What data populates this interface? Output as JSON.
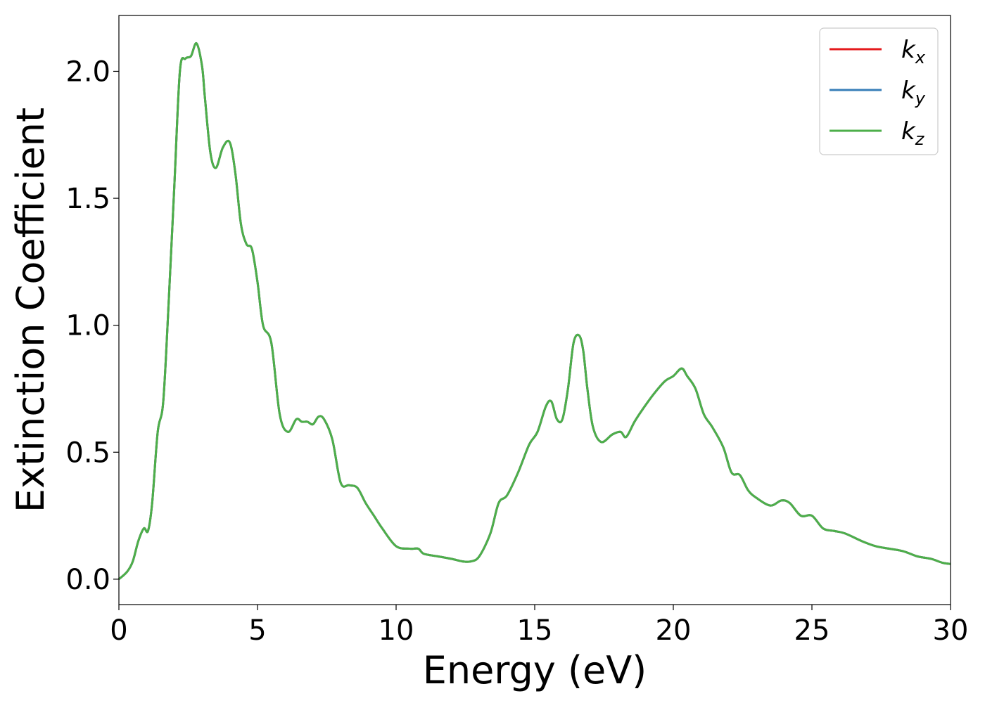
{
  "chart_data": {
    "type": "line",
    "xlabel": "Energy (eV)",
    "ylabel": "Extinction Coefficient",
    "xlim": [
      0,
      30
    ],
    "ylim": [
      -0.1,
      2.22
    ],
    "xticks": [
      0,
      5,
      10,
      15,
      20,
      25,
      30
    ],
    "xtick_labels": [
      "0",
      "5",
      "10",
      "15",
      "20",
      "25",
      "30"
    ],
    "yticks": [
      0.0,
      0.5,
      1.0,
      1.5,
      2.0
    ],
    "ytick_labels": [
      "0.0",
      "0.5",
      "1.0",
      "1.5",
      "2.0"
    ],
    "grid": false,
    "legend_position": "top-right",
    "x": [
      0,
      0.3,
      0.5,
      0.7,
      0.9,
      1.05,
      1.2,
      1.4,
      1.6,
      1.8,
      2.0,
      2.2,
      2.4,
      2.6,
      2.8,
      3.0,
      3.1,
      3.3,
      3.5,
      3.75,
      4.0,
      4.2,
      4.4,
      4.6,
      4.8,
      5.0,
      5.2,
      5.5,
      5.8,
      6.1,
      6.4,
      6.6,
      6.8,
      7.0,
      7.2,
      7.4,
      7.7,
      8.0,
      8.3,
      8.6,
      8.9,
      9.2,
      9.5,
      10.0,
      10.5,
      10.8,
      11.0,
      11.5,
      12.0,
      12.4,
      12.7,
      13.0,
      13.4,
      13.7,
      14.0,
      14.4,
      14.8,
      15.1,
      15.4,
      15.6,
      15.8,
      16.0,
      16.2,
      16.4,
      16.6,
      16.75,
      16.9,
      17.1,
      17.4,
      17.8,
      18.1,
      18.3,
      18.6,
      18.9,
      19.3,
      19.7,
      20.0,
      20.3,
      20.5,
      20.8,
      21.1,
      21.4,
      21.8,
      22.1,
      22.4,
      22.7,
      23.0,
      23.5,
      23.9,
      24.2,
      24.6,
      25.0,
      25.4,
      25.8,
      26.2,
      26.8,
      27.3,
      27.8,
      28.3,
      28.8,
      29.3,
      29.7,
      30.0
    ],
    "series": [
      {
        "name": "k_x",
        "label_base": "k",
        "label_sub": "x",
        "color": "#e41a1c",
        "values": [
          0.0,
          0.03,
          0.07,
          0.15,
          0.2,
          0.19,
          0.3,
          0.58,
          0.7,
          1.1,
          1.55,
          2.0,
          2.05,
          2.06,
          2.11,
          2.02,
          1.9,
          1.68,
          1.62,
          1.7,
          1.72,
          1.6,
          1.4,
          1.32,
          1.3,
          1.17,
          1.0,
          0.93,
          0.65,
          0.58,
          0.63,
          0.62,
          0.62,
          0.61,
          0.64,
          0.63,
          0.55,
          0.38,
          0.37,
          0.36,
          0.3,
          0.25,
          0.2,
          0.13,
          0.12,
          0.12,
          0.1,
          0.09,
          0.08,
          0.07,
          0.07,
          0.09,
          0.18,
          0.3,
          0.33,
          0.42,
          0.53,
          0.58,
          0.68,
          0.7,
          0.63,
          0.63,
          0.75,
          0.93,
          0.96,
          0.9,
          0.75,
          0.6,
          0.54,
          0.57,
          0.58,
          0.56,
          0.62,
          0.67,
          0.73,
          0.78,
          0.8,
          0.83,
          0.8,
          0.75,
          0.65,
          0.6,
          0.52,
          0.42,
          0.41,
          0.35,
          0.32,
          0.29,
          0.31,
          0.3,
          0.25,
          0.25,
          0.2,
          0.19,
          0.18,
          0.15,
          0.13,
          0.12,
          0.11,
          0.09,
          0.08,
          0.065,
          0.06
        ]
      },
      {
        "name": "k_y",
        "label_base": "k",
        "label_sub": "y",
        "color": "#377eb8",
        "values": [
          0.0,
          0.03,
          0.07,
          0.15,
          0.2,
          0.19,
          0.3,
          0.58,
          0.7,
          1.1,
          1.55,
          2.0,
          2.05,
          2.06,
          2.11,
          2.02,
          1.9,
          1.68,
          1.62,
          1.7,
          1.72,
          1.6,
          1.4,
          1.32,
          1.3,
          1.17,
          1.0,
          0.93,
          0.65,
          0.58,
          0.63,
          0.62,
          0.62,
          0.61,
          0.64,
          0.63,
          0.55,
          0.38,
          0.37,
          0.36,
          0.3,
          0.25,
          0.2,
          0.13,
          0.12,
          0.12,
          0.1,
          0.09,
          0.08,
          0.07,
          0.07,
          0.09,
          0.18,
          0.3,
          0.33,
          0.42,
          0.53,
          0.58,
          0.68,
          0.7,
          0.63,
          0.63,
          0.75,
          0.93,
          0.96,
          0.9,
          0.75,
          0.6,
          0.54,
          0.57,
          0.58,
          0.56,
          0.62,
          0.67,
          0.73,
          0.78,
          0.8,
          0.83,
          0.8,
          0.75,
          0.65,
          0.6,
          0.52,
          0.42,
          0.41,
          0.35,
          0.32,
          0.29,
          0.31,
          0.3,
          0.25,
          0.25,
          0.2,
          0.19,
          0.18,
          0.15,
          0.13,
          0.12,
          0.11,
          0.09,
          0.08,
          0.065,
          0.06
        ]
      },
      {
        "name": "k_z",
        "label_base": "k",
        "label_sub": "z",
        "color": "#4daf4a",
        "values": [
          0.0,
          0.03,
          0.07,
          0.15,
          0.2,
          0.19,
          0.3,
          0.58,
          0.7,
          1.1,
          1.55,
          2.0,
          2.05,
          2.06,
          2.11,
          2.02,
          1.9,
          1.68,
          1.62,
          1.7,
          1.72,
          1.6,
          1.4,
          1.32,
          1.3,
          1.17,
          1.0,
          0.93,
          0.65,
          0.58,
          0.63,
          0.62,
          0.62,
          0.61,
          0.64,
          0.63,
          0.55,
          0.38,
          0.37,
          0.36,
          0.3,
          0.25,
          0.2,
          0.13,
          0.12,
          0.12,
          0.1,
          0.09,
          0.08,
          0.07,
          0.07,
          0.09,
          0.18,
          0.3,
          0.33,
          0.42,
          0.53,
          0.58,
          0.68,
          0.7,
          0.63,
          0.63,
          0.75,
          0.93,
          0.96,
          0.9,
          0.75,
          0.6,
          0.54,
          0.57,
          0.58,
          0.56,
          0.62,
          0.67,
          0.73,
          0.78,
          0.8,
          0.83,
          0.8,
          0.75,
          0.65,
          0.6,
          0.52,
          0.42,
          0.41,
          0.35,
          0.32,
          0.29,
          0.31,
          0.3,
          0.25,
          0.25,
          0.2,
          0.19,
          0.18,
          0.15,
          0.13,
          0.12,
          0.11,
          0.09,
          0.08,
          0.065,
          0.06
        ]
      }
    ]
  }
}
